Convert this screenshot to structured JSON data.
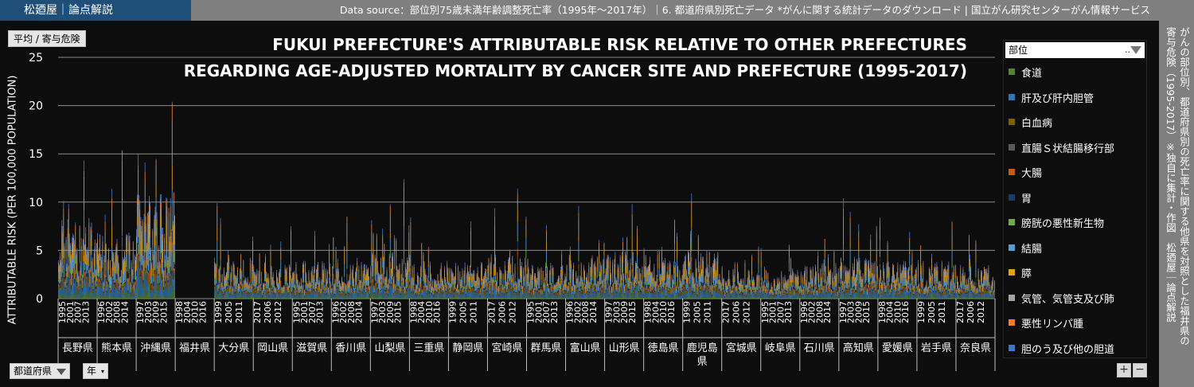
{
  "brand": "松廼屋｜論点解説",
  "source": "Data source：部位別75歳未満年齢調整死亡率（1995年～2017年）｜6. 都道府県別死亡データ *がんに関する統計データのダウンロード | 国立がん研究センターがん情報サービス",
  "controls": {
    "measure_label": "平均 / 寄与危険",
    "pref_filter_label": "都道府県",
    "year_filter_label": "年",
    "zoom_in": "+",
    "zoom_out": "−"
  },
  "legend": {
    "title": "部位",
    "more": "..",
    "items": [
      {
        "label": "食道",
        "color": "#548235"
      },
      {
        "label": "肝及び肝内胆管",
        "color": "#2e75b6"
      },
      {
        "label": "白血病",
        "color": "#7f6000"
      },
      {
        "label": "直腸Ｓ状結腸移行部",
        "color": "#595959"
      },
      {
        "label": "大腸",
        "color": "#c55a11"
      },
      {
        "label": "胃",
        "color": "#203864"
      },
      {
        "label": "膀胱の悪性新生物",
        "color": "#70ad47"
      },
      {
        "label": "結腸",
        "color": "#5b9bd5"
      },
      {
        "label": "膵",
        "color": "#e6a117"
      },
      {
        "label": "気管、気管支及び肺",
        "color": "#a5a5a5"
      },
      {
        "label": "悪性リンパ腫",
        "color": "#ed7d31"
      },
      {
        "label": "胆のう及び他の胆道",
        "color": "#4472c4"
      }
    ]
  },
  "side_text": {
    "line1": "がんの部位別、都道府県別の死亡率に関する他県を対照とした福井県の",
    "line2": "寄与危険（1995-2017）※独自に集計・作図　松廼屋｜論点解説"
  },
  "chart_data": {
    "type": "bar",
    "stacked": true,
    "title": "FUKUI PREFECTURE'S ATTRIBUTABLE RISK RELATIVE TO OTHER PREFECTURES",
    "subtitle": "REGARDING AGE-ADJUSTED MORTALITY BY CANCER SITE AND PREFECTURE (1995-2017)",
    "ylabel": "ATTRIBUTABLE RISK (PER 100,000 POPULATION)",
    "ylim": [
      0,
      25
    ],
    "yticks": [
      0,
      5,
      10,
      15,
      20,
      25
    ],
    "grid": true,
    "legend_position": "right",
    "prefectures": [
      {
        "name": "長野県",
        "years": [
          "1995",
          "2001",
          "2007",
          "2013"
        ],
        "peak": 14.3,
        "mean": 5.0
      },
      {
        "name": "熊本県",
        "years": [
          "1996",
          "2002",
          "2008",
          "2014"
        ],
        "peak": 15.4,
        "mean": 4.2
      },
      {
        "name": "沖縄県",
        "years": [
          "1997",
          "2003",
          "2009",
          "2015"
        ],
        "peak": 20.4,
        "mean": 6.5
      },
      {
        "name": "福井県",
        "years": [
          "1998",
          "2004",
          "2010",
          "2016"
        ],
        "peak": 0,
        "mean": 0
      },
      {
        "name": "大分県",
        "years": [
          "1999",
          "2005",
          "2011"
        ],
        "peak": 9.9,
        "mean": 2.8
      },
      {
        "name": "岡山県",
        "years": [
          "2017",
          "2006",
          "2012"
        ],
        "peak": 7.5,
        "mean": 2.2
      },
      {
        "name": "滋賀県",
        "years": [
          "1995",
          "2001",
          "2007",
          "2013"
        ],
        "peak": 7.0,
        "mean": 2.3
      },
      {
        "name": "香川県",
        "years": [
          "1996",
          "2002",
          "2008",
          "2014"
        ],
        "peak": 8.5,
        "mean": 2.6
      },
      {
        "name": "山梨県",
        "years": [
          "1997",
          "2003",
          "2009",
          "2015"
        ],
        "peak": 12.4,
        "mean": 2.9
      },
      {
        "name": "三重県",
        "years": [
          "1998",
          "2004",
          "2010",
          "2016"
        ],
        "peak": 8.4,
        "mean": 2.4
      },
      {
        "name": "静岡県",
        "years": [
          "1999",
          "2005",
          "2011"
        ],
        "peak": 8.0,
        "mean": 2.3
      },
      {
        "name": "宮崎県",
        "years": [
          "2017",
          "2006",
          "2012"
        ],
        "peak": 11.4,
        "mean": 3.0
      },
      {
        "name": "群馬県",
        "years": [
          "1995",
          "2001",
          "2007",
          "2013"
        ],
        "peak": 7.6,
        "mean": 2.3
      },
      {
        "name": "富山県",
        "years": [
          "1996",
          "2002",
          "2008",
          "2014"
        ],
        "peak": 9.6,
        "mean": 2.7
      },
      {
        "name": "山形県",
        "years": [
          "1997",
          "2003",
          "2009",
          "2015"
        ],
        "peak": 9.8,
        "mean": 2.9
      },
      {
        "name": "徳島県",
        "years": [
          "1998",
          "2004",
          "2010",
          "2016"
        ],
        "peak": 8.2,
        "mean": 2.5
      },
      {
        "name": "鹿児島県",
        "years": [
          "1999",
          "2005",
          "2011"
        ],
        "peak": 10.9,
        "mean": 3.0
      },
      {
        "name": "宮城県",
        "years": [
          "2017",
          "2006",
          "2012"
        ],
        "peak": 5.4,
        "mean": 1.9
      },
      {
        "name": "岐阜県",
        "years": [
          "1995",
          "2001",
          "2007",
          "2013"
        ],
        "peak": 5.6,
        "mean": 1.9
      },
      {
        "name": "石川県",
        "years": [
          "1996",
          "2002",
          "2008",
          "2014"
        ],
        "peak": 6.2,
        "mean": 2.0
      },
      {
        "name": "高知県",
        "years": [
          "1997",
          "2003",
          "2009",
          "2015"
        ],
        "peak": 10.4,
        "mean": 2.6
      },
      {
        "name": "愛媛県",
        "years": [
          "1998",
          "2004",
          "2010",
          "2016"
        ],
        "peak": 8.4,
        "mean": 2.4
      },
      {
        "name": "岩手県",
        "years": [
          "1999",
          "2005",
          "2011"
        ],
        "peak": 8.0,
        "mean": 2.4
      },
      {
        "name": "奈良県",
        "years": [
          "2017",
          "2006",
          "2012"
        ],
        "peak": 6.6,
        "mean": 2.1
      }
    ]
  }
}
